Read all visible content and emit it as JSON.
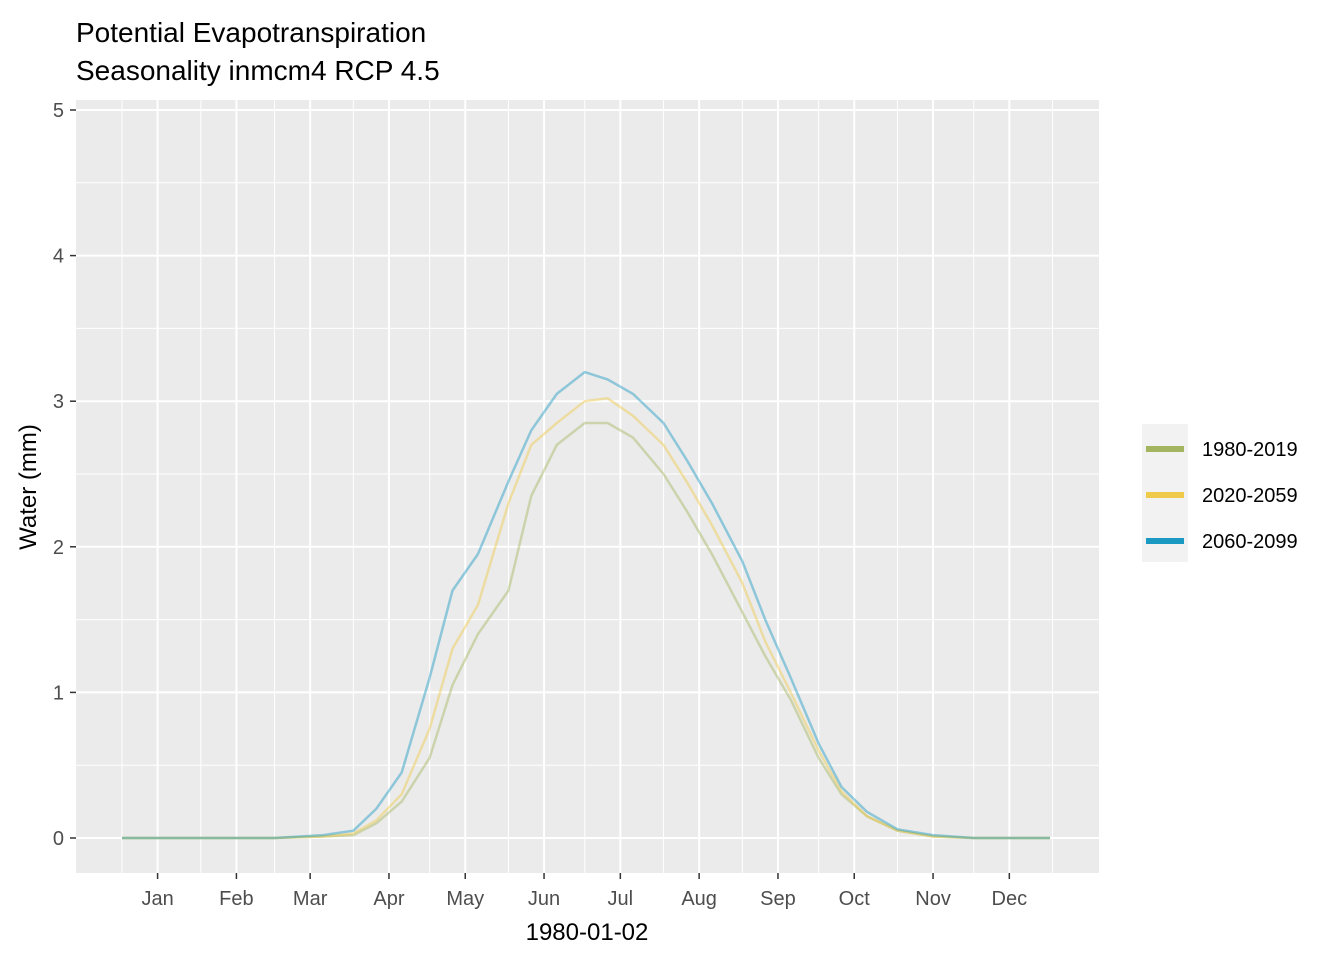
{
  "chart_data": {
    "type": "line",
    "title": "Potential Evapotranspiration",
    "subtitle": "Seasonality inmcm4 RCP 4.5",
    "xlabel": "1980-01-02",
    "ylabel": "Water (mm)",
    "ylim": [
      0,
      5
    ],
    "xlim": [
      "1979-12-18",
      "1980-12-31"
    ],
    "yticks": [
      "0",
      "1",
      "2",
      "3",
      "4",
      "5"
    ],
    "xticks": [
      "Jan",
      "Feb",
      "Mar",
      "Apr",
      "May",
      "Jun",
      "Jul",
      "Aug",
      "Sep",
      "Oct",
      "Nov",
      "Dec"
    ],
    "xtick_dates": [
      "1980-01-15",
      "1980-02-15",
      "1980-03-15",
      "1980-04-15",
      "1980-05-15",
      "1980-06-15",
      "1980-07-15",
      "1980-08-15",
      "1980-09-15",
      "1980-10-15",
      "1980-11-15",
      "1980-12-15"
    ],
    "grid": true,
    "legend_position": "right",
    "series": [
      {
        "name": "1980-2019",
        "color": "#A4B55F",
        "x": [
          "1980-01-01",
          "1980-02-01",
          "1980-03-01",
          "1980-03-20",
          "1980-04-01",
          "1980-04-10",
          "1980-04-20",
          "1980-05-01",
          "1980-05-10",
          "1980-05-20",
          "1980-06-01",
          "1980-06-10",
          "1980-06-20",
          "1980-07-01",
          "1980-07-10",
          "1980-07-20",
          "1980-08-01",
          "1980-08-10",
          "1980-08-20",
          "1980-09-01",
          "1980-09-10",
          "1980-09-20",
          "1980-10-01",
          "1980-10-10",
          "1980-10-20",
          "1980-11-01",
          "1980-11-15",
          "1980-12-01",
          "1980-12-31"
        ],
        "y": [
          0,
          0,
          0,
          0.01,
          0.02,
          0.1,
          0.25,
          0.55,
          1.05,
          1.4,
          1.7,
          2.35,
          2.7,
          2.85,
          2.85,
          2.75,
          2.5,
          2.25,
          1.95,
          1.55,
          1.25,
          0.95,
          0.55,
          0.3,
          0.15,
          0.05,
          0.01,
          0,
          0
        ]
      },
      {
        "name": "2020-2059",
        "color": "#F0CA49",
        "x": [
          "1980-01-01",
          "1980-02-01",
          "1980-03-01",
          "1980-03-20",
          "1980-04-01",
          "1980-04-10",
          "1980-04-20",
          "1980-05-01",
          "1980-05-10",
          "1980-05-20",
          "1980-06-01",
          "1980-06-10",
          "1980-06-20",
          "1980-07-01",
          "1980-07-10",
          "1980-07-20",
          "1980-08-01",
          "1980-08-10",
          "1980-08-20",
          "1980-09-01",
          "1980-09-10",
          "1980-09-20",
          "1980-10-01",
          "1980-10-10",
          "1980-10-20",
          "1980-11-01",
          "1980-11-15",
          "1980-12-01",
          "1980-12-31"
        ],
        "y": [
          0,
          0,
          0,
          0.01,
          0.03,
          0.12,
          0.3,
          0.75,
          1.3,
          1.6,
          2.3,
          2.7,
          2.85,
          3.0,
          3.02,
          2.9,
          2.7,
          2.45,
          2.15,
          1.75,
          1.35,
          1.0,
          0.6,
          0.32,
          0.15,
          0.05,
          0.01,
          0,
          0
        ]
      },
      {
        "name": "2060-2099",
        "color": "#1A9AC3",
        "x": [
          "1980-01-01",
          "1980-02-01",
          "1980-03-01",
          "1980-03-20",
          "1980-04-01",
          "1980-04-10",
          "1980-04-20",
          "1980-05-01",
          "1980-05-10",
          "1980-05-20",
          "1980-06-01",
          "1980-06-10",
          "1980-06-20",
          "1980-07-01",
          "1980-07-10",
          "1980-07-20",
          "1980-08-01",
          "1980-08-10",
          "1980-08-20",
          "1980-09-01",
          "1980-09-10",
          "1980-09-20",
          "1980-10-01",
          "1980-10-10",
          "1980-10-20",
          "1980-11-01",
          "1980-11-15",
          "1980-12-01",
          "1980-12-31"
        ],
        "y": [
          0,
          0,
          0,
          0.02,
          0.05,
          0.2,
          0.45,
          1.1,
          1.7,
          1.95,
          2.45,
          2.8,
          3.05,
          3.2,
          3.15,
          3.05,
          2.85,
          2.6,
          2.3,
          1.9,
          1.5,
          1.1,
          0.65,
          0.35,
          0.18,
          0.06,
          0.02,
          0,
          0
        ]
      }
    ]
  }
}
